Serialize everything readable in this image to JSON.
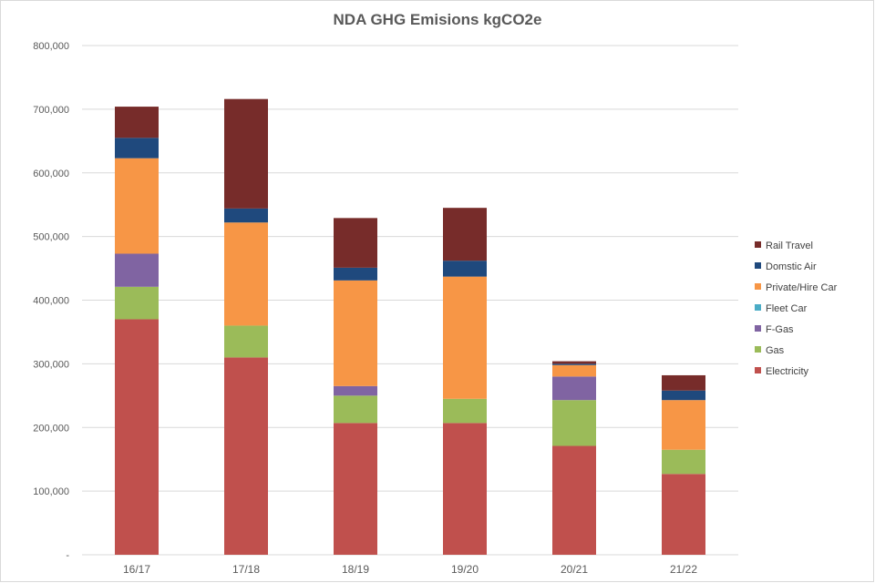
{
  "chart_data": {
    "type": "bar",
    "stacked": true,
    "title": "NDA GHG Emisions  kgCO2e",
    "xlabel": "",
    "ylabel": "",
    "ylim": [
      0,
      800000
    ],
    "ytick_labels": [
      "-",
      "100,000",
      "200,000",
      "300,000",
      "400,000",
      "500,000",
      "600,000",
      "700,000",
      "800,000"
    ],
    "ytick_values": [
      0,
      100000,
      200000,
      300000,
      400000,
      500000,
      600000,
      700000,
      800000
    ],
    "grid": true,
    "legend_position": "right",
    "categories": [
      "16/17",
      "17/18",
      "18/19",
      "19/20",
      "20/21",
      "21/22"
    ],
    "series": [
      {
        "name": "Electricity",
        "color": "#c0504d",
        "values": [
          370000,
          310000,
          207000,
          207000,
          171000,
          127000
        ]
      },
      {
        "name": "Gas",
        "color": "#9bbb59",
        "values": [
          51000,
          50000,
          43000,
          38000,
          72000,
          38000
        ]
      },
      {
        "name": "F-Gas",
        "color": "#8064a2",
        "values": [
          52000,
          0,
          15000,
          0,
          37000,
          0
        ]
      },
      {
        "name": "Fleet Car",
        "color": "#4bacc6",
        "values": [
          0,
          0,
          0,
          0,
          0,
          0
        ]
      },
      {
        "name": "Private/Hire Car",
        "color": "#f79646",
        "values": [
          150000,
          162000,
          166000,
          192000,
          18000,
          78000
        ]
      },
      {
        "name": "Domstic Air",
        "color": "#1f497d",
        "values": [
          32000,
          22000,
          20000,
          25000,
          2000,
          15000
        ]
      },
      {
        "name": "Rail Travel",
        "color": "#772c2a",
        "values": [
          49000,
          172000,
          78000,
          83000,
          4000,
          24000
        ]
      }
    ]
  }
}
